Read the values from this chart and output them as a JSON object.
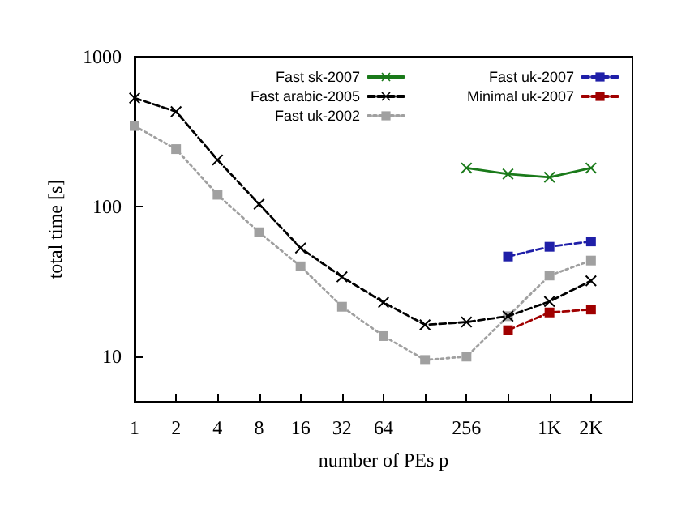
{
  "chart_data": {
    "type": "line",
    "xlabel": "number of PEs p",
    "ylabel": "total time [s]",
    "log": "xy",
    "xlim": [
      1,
      4096
    ],
    "ylim": [
      5,
      1000
    ],
    "xticks": [
      1,
      2,
      4,
      8,
      16,
      32,
      64,
      {
        "value": 128,
        "label": null
      },
      256,
      {
        "value": 512,
        "label": null
      },
      {
        "value": 1024,
        "label": "1K"
      },
      {
        "value": 2048,
        "label": "2K"
      }
    ],
    "yticks": [
      10,
      100,
      1000
    ],
    "grid": false,
    "legend": "top right",
    "series": [
      {
        "name": "Fast sk-2007",
        "color": "#1a7a1a",
        "marker": "cross",
        "line_style": "solid",
        "x": [
          256,
          512,
          1024,
          2048
        ],
        "values": [
          181,
          165,
          157,
          181
        ]
      },
      {
        "name": "Fast arabic-2005",
        "color": "#000000",
        "marker": "cross",
        "line_style": "dashed",
        "x": [
          1,
          2,
          4,
          8,
          16,
          32,
          64,
          128,
          256,
          512,
          1024,
          2048
        ],
        "values": [
          530,
          430,
          205,
          104,
          53,
          34,
          23,
          16.3,
          17,
          18.6,
          23.3,
          32
        ]
      },
      {
        "name": "Fast uk-2002",
        "color": "#a0a0a0",
        "marker": "square",
        "line_style": "dotted",
        "x": [
          1,
          2,
          4,
          8,
          16,
          32,
          64,
          128,
          256,
          512,
          1024,
          2048
        ],
        "values": [
          345,
          242,
          120,
          67.5,
          40,
          21.5,
          13.7,
          9.5,
          10,
          18.6,
          34.7,
          43.7
        ]
      },
      {
        "name": "Fast uk-2007",
        "color": "#1f1fa8",
        "marker": "square",
        "line_style": "dashed",
        "x": [
          512,
          1024,
          2048
        ],
        "values": [
          46.5,
          54,
          58.6
        ]
      },
      {
        "name": "Minimal uk-2007",
        "color": "#a00000",
        "marker": "square",
        "line_style": "dashed",
        "x": [
          512,
          1024,
          2048
        ],
        "values": [
          15,
          19.7,
          20.6
        ]
      }
    ]
  }
}
